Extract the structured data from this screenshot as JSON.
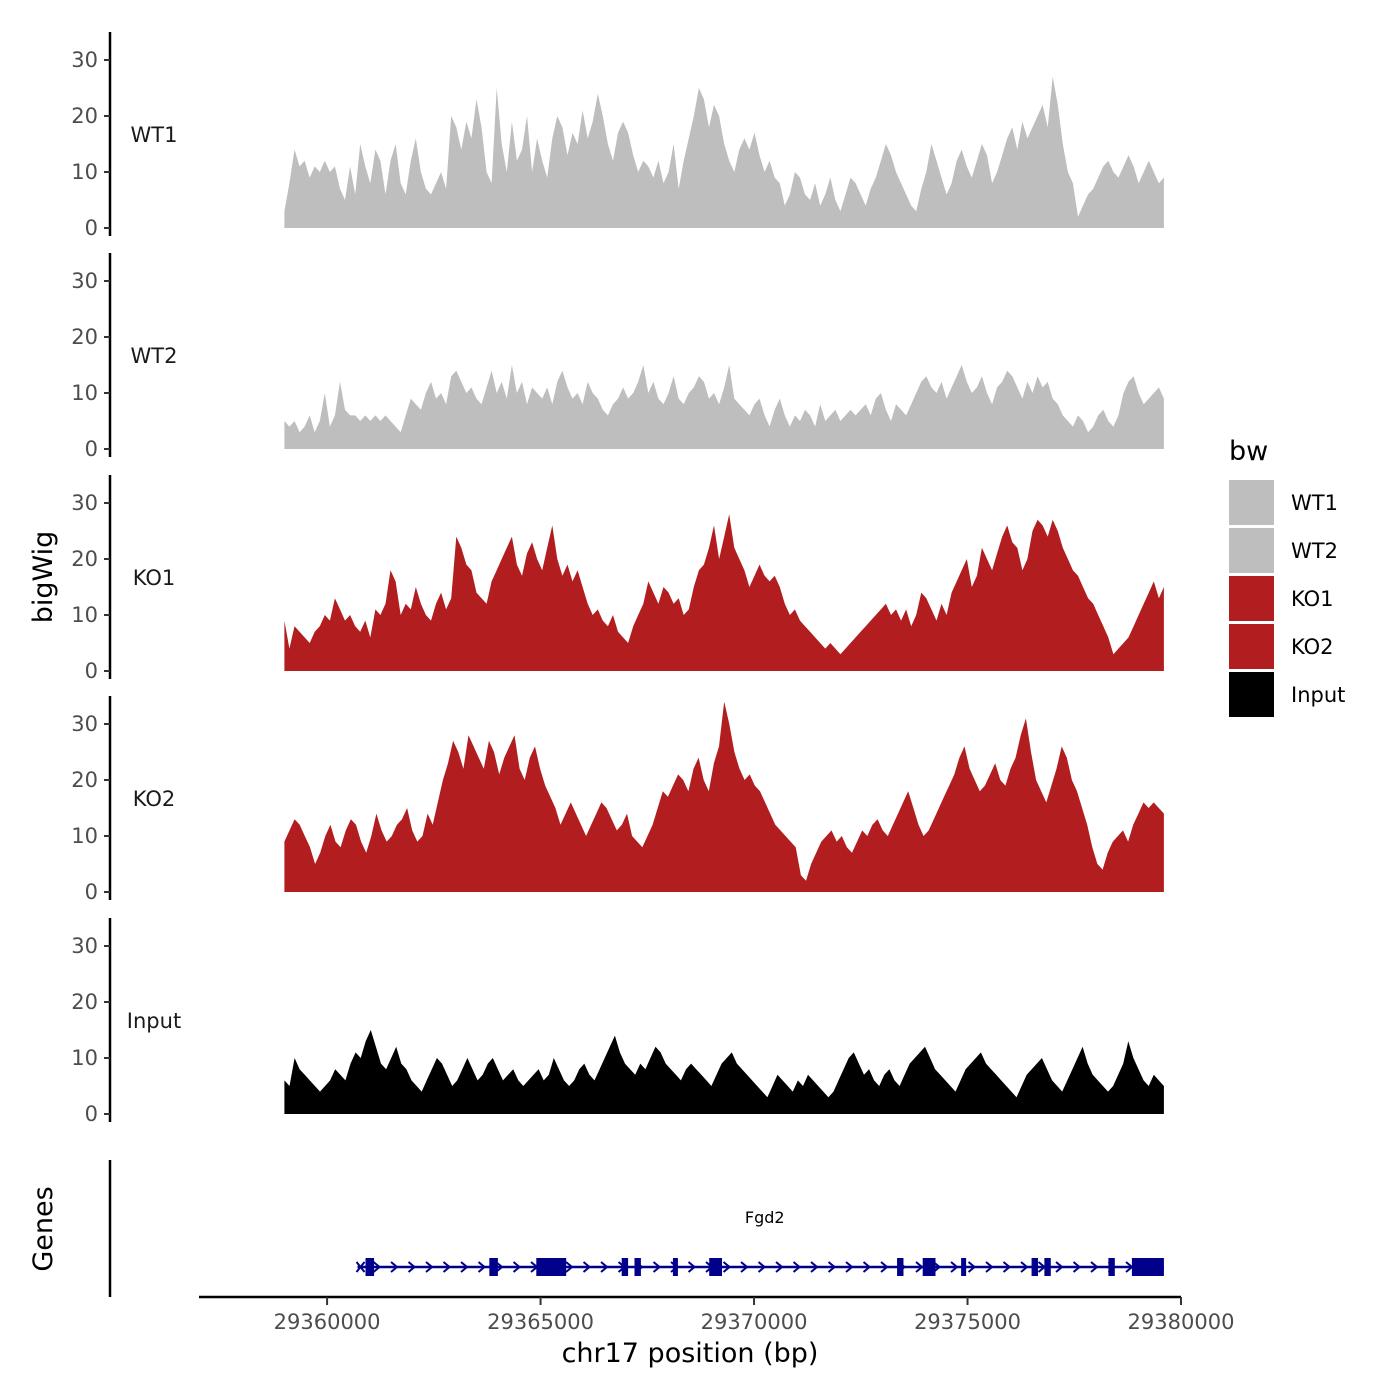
{
  "chart_data": {
    "type": "area",
    "ylabel": "bigWig",
    "xlabel": "chr17 position (bp)",
    "ylim": [
      0,
      35
    ],
    "yticks": [
      0,
      10,
      20,
      30
    ],
    "x_range": [
      29359000,
      29379600
    ],
    "x_domain": [
      29357000,
      29380000
    ],
    "xticks": [
      29360000,
      29365000,
      29370000,
      29375000,
      29380000
    ],
    "xtick_labels": [
      "29360000",
      "29365000",
      "29370000",
      "29375000",
      "29380000"
    ],
    "series": [
      {
        "name": "WT1",
        "color": "#bebebe",
        "values": [
          3,
          8,
          14,
          11,
          12,
          9,
          11,
          10,
          12,
          10,
          11,
          7,
          5,
          11,
          6,
          15,
          11,
          8,
          14,
          12,
          6,
          12,
          15,
          8,
          6,
          12,
          16,
          10,
          7,
          6,
          8,
          10,
          7,
          20,
          18,
          14,
          19,
          16,
          23,
          18,
          10,
          8,
          25,
          15,
          10,
          19,
          12,
          14,
          20,
          10,
          16,
          12,
          9,
          16,
          20,
          18,
          13,
          17,
          15,
          21,
          16,
          19,
          24,
          20,
          15,
          12,
          17,
          19,
          17,
          13,
          10,
          12,
          11,
          9,
          12,
          8,
          10,
          15,
          7,
          12,
          16,
          20,
          25,
          23,
          18,
          22,
          20,
          15,
          12,
          10,
          14,
          16,
          14,
          17,
          13,
          10,
          12,
          9,
          8,
          4,
          6,
          10,
          9,
          6,
          5,
          8,
          4,
          6,
          9,
          5,
          3,
          6,
          9,
          8,
          6,
          4,
          7,
          9,
          12,
          15,
          13,
          10,
          8,
          6,
          4,
          3,
          7,
          10,
          15,
          12,
          9,
          6,
          8,
          12,
          14,
          11,
          9,
          12,
          15,
          13,
          8,
          10,
          13,
          16,
          18,
          14,
          19,
          16,
          18,
          20,
          22,
          18,
          27,
          22,
          15,
          10,
          8,
          2,
          4,
          6,
          7,
          9,
          11,
          12,
          10,
          9,
          11,
          13,
          11,
          8,
          10,
          12,
          10,
          8,
          9
        ]
      },
      {
        "name": "WT2",
        "color": "#bebebe",
        "values": [
          5,
          4,
          5,
          3,
          4,
          6,
          3,
          5,
          10,
          4,
          6,
          12,
          7,
          6,
          6,
          5,
          6,
          5,
          6,
          5,
          6,
          5,
          4,
          3,
          6,
          9,
          8,
          7,
          10,
          12,
          9,
          10,
          8,
          13,
          14,
          12,
          10,
          11,
          9,
          8,
          11,
          14,
          10,
          12,
          9,
          15,
          10,
          12,
          8,
          11,
          10,
          9,
          11,
          8,
          12,
          14,
          11,
          9,
          10,
          8,
          12,
          10,
          9,
          7,
          6,
          8,
          9,
          11,
          9,
          10,
          12,
          15,
          10,
          12,
          9,
          8,
          10,
          13,
          9,
          8,
          10,
          11,
          13,
          12,
          9,
          10,
          8,
          11,
          15,
          9,
          8,
          7,
          6,
          8,
          9,
          6,
          4,
          7,
          9,
          6,
          4,
          6,
          5,
          7,
          6,
          4,
          8,
          5,
          6,
          7,
          5,
          6,
          7,
          6,
          7,
          8,
          6,
          9,
          10,
          7,
          5,
          8,
          7,
          6,
          8,
          10,
          12,
          13,
          11,
          10,
          12,
          9,
          11,
          13,
          15,
          12,
          10,
          11,
          13,
          10,
          8,
          11,
          12,
          14,
          13,
          11,
          9,
          12,
          10,
          13,
          11,
          12,
          9,
          8,
          6,
          5,
          4,
          6,
          5,
          3,
          4,
          6,
          7,
          5,
          4,
          6,
          10,
          12,
          13,
          10,
          8,
          9,
          10,
          11,
          9
        ]
      },
      {
        "name": "KO1",
        "color": "#b21e1f",
        "values": [
          9,
          4,
          8,
          7,
          6,
          5,
          7,
          8,
          10,
          9,
          13,
          11,
          9,
          10,
          8,
          7,
          9,
          6,
          11,
          10,
          12,
          18,
          16,
          10,
          12,
          11,
          15,
          12,
          10,
          9,
          12,
          14,
          11,
          13,
          24,
          22,
          19,
          18,
          14,
          13,
          12,
          16,
          18,
          20,
          22,
          24,
          19,
          17,
          21,
          23,
          20,
          18,
          22,
          26,
          20,
          17,
          19,
          16,
          18,
          15,
          12,
          10,
          11,
          9,
          8,
          10,
          7,
          6,
          5,
          8,
          10,
          12,
          16,
          14,
          12,
          15,
          14,
          12,
          13,
          10,
          11,
          15,
          18,
          19,
          22,
          26,
          20,
          24,
          28,
          22,
          20,
          18,
          15,
          17,
          19,
          17,
          16,
          17,
          15,
          12,
          10,
          11,
          9,
          8,
          7,
          6,
          5,
          4,
          5,
          4,
          3,
          4,
          5,
          6,
          7,
          8,
          9,
          10,
          11,
          12,
          10,
          11,
          9,
          11,
          8,
          10,
          14,
          13,
          11,
          9,
          12,
          10,
          14,
          16,
          18,
          20,
          15,
          17,
          22,
          20,
          18,
          21,
          24,
          26,
          23,
          22,
          18,
          20,
          25,
          27,
          26,
          24,
          27,
          25,
          22,
          20,
          18,
          17,
          15,
          13,
          12,
          10,
          8,
          6,
          3,
          4,
          5,
          6,
          8,
          10,
          12,
          14,
          16,
          13,
          15
        ]
      },
      {
        "name": "KO2",
        "color": "#b21e1f",
        "values": [
          9,
          11,
          13,
          12,
          10,
          8,
          5,
          7,
          10,
          12,
          9,
          8,
          11,
          13,
          12,
          9,
          7,
          10,
          14,
          11,
          9,
          10,
          12,
          13,
          15,
          11,
          9,
          10,
          14,
          12,
          16,
          20,
          23,
          27,
          25,
          22,
          28,
          26,
          24,
          22,
          27,
          25,
          21,
          24,
          26,
          28,
          22,
          20,
          24,
          26,
          22,
          19,
          17,
          15,
          12,
          14,
          16,
          14,
          12,
          10,
          12,
          14,
          16,
          15,
          13,
          11,
          12,
          14,
          10,
          9,
          8,
          10,
          12,
          15,
          18,
          17,
          19,
          21,
          20,
          18,
          22,
          24,
          20,
          18,
          23,
          26,
          34,
          30,
          25,
          22,
          20,
          21,
          19,
          18,
          16,
          14,
          12,
          11,
          10,
          9,
          8,
          3,
          2,
          5,
          7,
          9,
          10,
          11,
          9,
          10,
          8,
          7,
          9,
          11,
          10,
          12,
          13,
          11,
          10,
          12,
          14,
          16,
          18,
          15,
          12,
          10,
          11,
          13,
          15,
          17,
          19,
          21,
          24,
          26,
          22,
          20,
          18,
          19,
          21,
          23,
          20,
          19,
          22,
          24,
          28,
          31,
          25,
          20,
          18,
          16,
          19,
          22,
          26,
          24,
          20,
          18,
          15,
          12,
          8,
          5,
          4,
          7,
          9,
          10,
          11,
          9,
          12,
          14,
          16,
          15,
          16,
          15,
          14
        ]
      },
      {
        "name": "Input",
        "color": "#000000",
        "values": [
          6,
          5,
          10,
          8,
          7,
          6,
          5,
          4,
          5,
          6,
          8,
          7,
          6,
          9,
          11,
          10,
          13,
          15,
          12,
          9,
          8,
          10,
          12,
          9,
          8,
          6,
          5,
          4,
          6,
          8,
          10,
          9,
          7,
          5,
          6,
          8,
          10,
          8,
          6,
          7,
          9,
          10,
          8,
          6,
          7,
          8,
          6,
          5,
          6,
          7,
          8,
          6,
          7,
          10,
          8,
          6,
          5,
          6,
          8,
          9,
          7,
          6,
          8,
          10,
          12,
          14,
          11,
          9,
          8,
          7,
          9,
          8,
          10,
          12,
          11,
          9,
          8,
          7,
          6,
          8,
          9,
          8,
          7,
          6,
          5,
          7,
          9,
          10,
          11,
          9,
          8,
          7,
          6,
          5,
          4,
          3,
          5,
          7,
          6,
          5,
          4,
          6,
          5,
          7,
          6,
          5,
          4,
          3,
          4,
          6,
          8,
          10,
          11,
          9,
          7,
          8,
          6,
          5,
          7,
          8,
          6,
          5,
          7,
          9,
          10,
          11,
          12,
          10,
          8,
          7,
          6,
          5,
          4,
          6,
          8,
          9,
          10,
          11,
          9,
          8,
          7,
          6,
          5,
          4,
          3,
          5,
          7,
          8,
          9,
          10,
          8,
          6,
          5,
          4,
          6,
          8,
          10,
          12,
          9,
          7,
          6,
          5,
          4,
          5,
          7,
          9,
          13,
          10,
          8,
          6,
          5,
          7,
          6,
          5
        ]
      }
    ],
    "legend": {
      "title": "bw",
      "position": "right",
      "entries": [
        "WT1",
        "WT2",
        "KO1",
        "KO2",
        "Input"
      ]
    },
    "genes": {
      "panel_label": "Genes",
      "color": "#00008b",
      "items": [
        {
          "name": "Fgd2",
          "start": 29360900,
          "end": 29379600,
          "strand": "+",
          "exons": [
            [
              29360900,
              29361100
            ],
            [
              29363800,
              29364000
            ],
            [
              29364900,
              29365600
            ],
            [
              29366900,
              29367050
            ],
            [
              29367200,
              29367350
            ],
            [
              29368100,
              29368200
            ],
            [
              29368950,
              29369250
            ],
            [
              29373350,
              29373500
            ],
            [
              29373950,
              29374250
            ],
            [
              29374850,
              29374950
            ],
            [
              29376500,
              29376650
            ],
            [
              29376800,
              29376950
            ],
            [
              29378300,
              29378450
            ],
            [
              29378850,
              29379600
            ]
          ]
        }
      ]
    }
  }
}
